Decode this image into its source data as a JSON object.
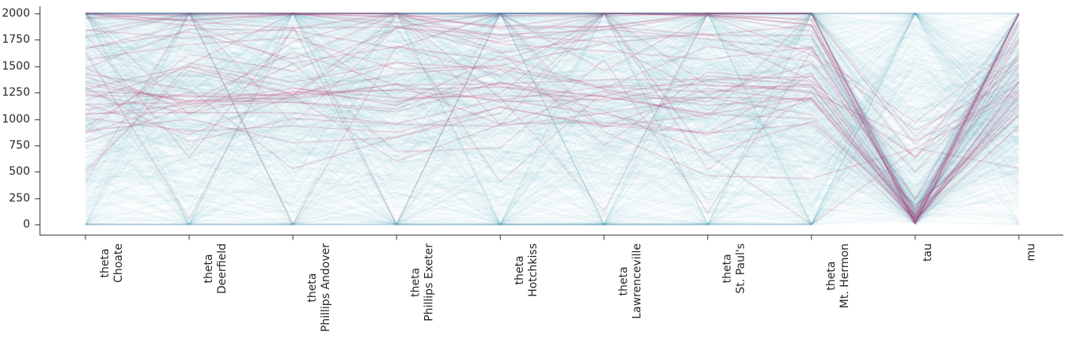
{
  "figure": {
    "background_color": "#ffffff",
    "text_color": "#262626",
    "spine_color": "#2b2b2b"
  },
  "chart_data": {
    "type": "line",
    "variant": "parallel-coordinates",
    "description": "Parallel coordinates plot of posterior samples across eight school theta parameters plus tau and mu; dense translucent teal sample lines with pink divergent-sample lines overlaid.",
    "title": "",
    "xlabel": "",
    "ylabel": "",
    "ylim": [
      0,
      2000
    ],
    "ytick_labels": [
      "0",
      "250",
      "500",
      "750",
      "1000",
      "1250",
      "1500",
      "1750",
      "2000"
    ],
    "grid": false,
    "legend": null,
    "x_axes": [
      {
        "id": "theta-choate",
        "label_lines": [
          "theta",
          "Choate"
        ]
      },
      {
        "id": "theta-deerfield",
        "label_lines": [
          "theta",
          "Deerfield"
        ]
      },
      {
        "id": "theta-phillips-andover",
        "label_lines": [
          "theta",
          "Phillips Andover"
        ]
      },
      {
        "id": "theta-phillips-exeter",
        "label_lines": [
          "theta",
          "Phillips Exeter"
        ]
      },
      {
        "id": "theta-hotchkiss",
        "label_lines": [
          "theta",
          "Hotchkiss"
        ]
      },
      {
        "id": "theta-lawrenceville",
        "label_lines": [
          "theta",
          "Lawrenceville"
        ]
      },
      {
        "id": "theta-st-pauls",
        "label_lines": [
          "theta",
          "St. Paul's"
        ]
      },
      {
        "id": "theta-mt-hermon",
        "label_lines": [
          "theta",
          "Mt. Hermon"
        ]
      },
      {
        "id": "tau",
        "label_lines": [
          "tau"
        ]
      },
      {
        "id": "mu",
        "label_lines": [
          "mu"
        ]
      }
    ],
    "series": [
      {
        "name": "posterior-samples",
        "color": "#2e96b0",
        "alpha": 0.055,
        "line_width": 0.9,
        "count": 820,
        "generator": {
          "seed": 42,
          "mu": {
            "mean": 1150,
            "sd": 600
          },
          "tau": {
            "p_low": 0.36,
            "low_scale": 130,
            "high_min": 150,
            "high_max": 2350
          },
          "theta_noise": {
            "tau_factor": 0.85,
            "base": 120,
            "sd_cap": 950
          },
          "clip": [
            0,
            2000
          ]
        }
      },
      {
        "name": "divergent-samples",
        "color": "#b0306a",
        "alpha": 0.3,
        "line_width": 1.0,
        "count": 42,
        "generator": {
          "seed": 7,
          "mu": {
            "mean": 1500,
            "sd": 450
          },
          "tau": {
            "p_low": 0.75,
            "low_scale": 90,
            "high_min": 200,
            "high_max": 1000
          },
          "theta_noise": {
            "tau_factor": 0.8,
            "base": 80,
            "sd_cap": 950
          },
          "clip": [
            0,
            2000
          ]
        }
      }
    ]
  }
}
